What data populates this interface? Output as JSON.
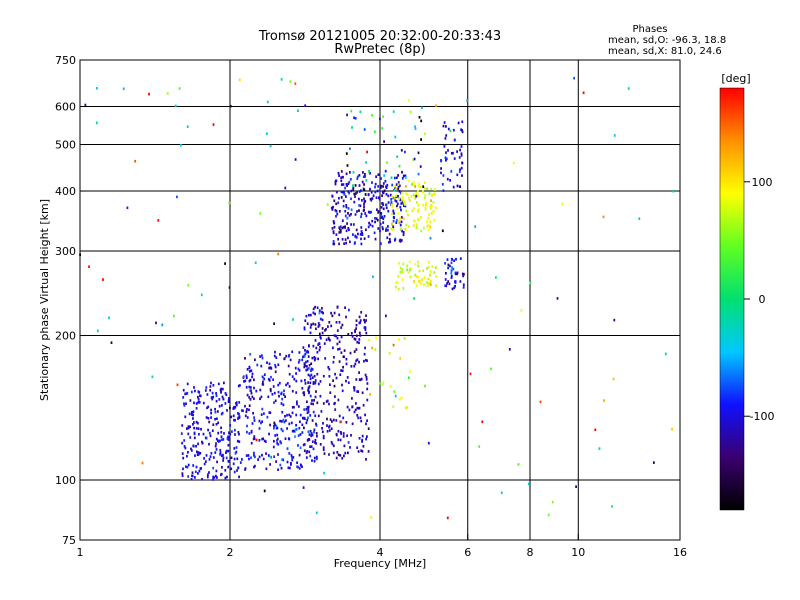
{
  "header": {
    "title": "Tromsø 20121005 20:32:00-20:33:43",
    "subtitle": "RwPretec (8p)"
  },
  "stats": {
    "label": "Phases",
    "line_o": "mean, sd,O: -96.3, 18.8",
    "line_x": "mean, sd,X:  81.0, 24.6"
  },
  "colorbar": {
    "unit": "[deg]",
    "ticks": [
      {
        "value": 100,
        "label": "100"
      },
      {
        "value": 0,
        "label": "0"
      },
      {
        "value": -100,
        "label": "-100"
      }
    ],
    "range": [
      -180,
      180
    ],
    "colors": [
      "#000000",
      "#3a0070",
      "#1010ff",
      "#00c8ff",
      "#00e070",
      "#60ff20",
      "#ffff00",
      "#ff9000",
      "#ff0000"
    ]
  },
  "chart_data": {
    "type": "scatter",
    "xlabel": "Frequency [MHz]",
    "ylabel": "Stationary phase Virtual Height [km]",
    "xscale": "log",
    "yscale": "log",
    "xlim": [
      1,
      16
    ],
    "ylim": [
      75,
      750
    ],
    "grid": true,
    "x_ticks": [
      {
        "value": 1,
        "label": "1"
      },
      {
        "value": 2,
        "label": "2"
      },
      {
        "value": 4,
        "label": "4"
      },
      {
        "value": 6,
        "label": "6"
      },
      {
        "value": 8,
        "label": "8"
      },
      {
        "value": 10,
        "label": "10"
      },
      {
        "value": 16,
        "label": "16"
      }
    ],
    "x_grid": [
      2,
      4,
      6,
      8,
      10
    ],
    "y_ticks": [
      {
        "value": 75,
        "label": "75"
      },
      {
        "value": 100,
        "label": "100"
      },
      {
        "value": 200,
        "label": "200"
      },
      {
        "value": 300,
        "label": "300"
      },
      {
        "value": 400,
        "label": "400"
      },
      {
        "value": 500,
        "label": "500"
      },
      {
        "value": 600,
        "label": "600"
      },
      {
        "value": 750,
        "label": "750"
      }
    ],
    "y_grid": [
      100,
      200,
      300,
      400,
      500,
      600
    ],
    "clusters": [
      {
        "x_range": [
          1.6,
          2.1
        ],
        "y_range": [
          100,
          160
        ],
        "phase_mean": -100,
        "phase_sd": 12,
        "count": 260
      },
      {
        "x_range": [
          2.1,
          3.0
        ],
        "y_range": [
          105,
          185
        ],
        "phase_mean": -100,
        "phase_sd": 15,
        "count": 320
      },
      {
        "x_range": [
          2.8,
          3.8
        ],
        "y_range": [
          110,
          230
        ],
        "phase_mean": -115,
        "phase_sd": 15,
        "count": 320
      },
      {
        "x_range": [
          3.2,
          4.5
        ],
        "y_range": [
          310,
          440
        ],
        "phase_mean": -105,
        "phase_sd": 18,
        "count": 300
      },
      {
        "x_range": [
          4.2,
          5.2
        ],
        "y_range": [
          330,
          420
        ],
        "phase_mean": 85,
        "phase_sd": 15,
        "count": 110
      },
      {
        "x_range": [
          4.3,
          5.2
        ],
        "y_range": [
          250,
          285
        ],
        "phase_mean": 80,
        "phase_sd": 20,
        "count": 55
      },
      {
        "x_range": [
          5.4,
          5.9
        ],
        "y_range": [
          250,
          290
        ],
        "phase_mean": -100,
        "phase_sd": 15,
        "count": 40
      },
      {
        "x_range": [
          5.3,
          5.9
        ],
        "y_range": [
          400,
          560
        ],
        "phase_mean": -100,
        "phase_sd": 15,
        "count": 50
      },
      {
        "x_range": [
          3.4,
          4.9
        ],
        "y_range": [
          400,
          600
        ],
        "phase_mean": -60,
        "phase_sd": 80,
        "count": 45
      },
      {
        "x_range": [
          3.8,
          4.6
        ],
        "y_range": [
          140,
          200
        ],
        "phase_mean": 90,
        "phase_sd": 30,
        "count": 20
      },
      {
        "x_range": [
          1.0,
          16.0
        ],
        "y_range": [
          80,
          700
        ],
        "phase_mean": 0,
        "phase_sd": 110,
        "count": 120
      }
    ]
  }
}
